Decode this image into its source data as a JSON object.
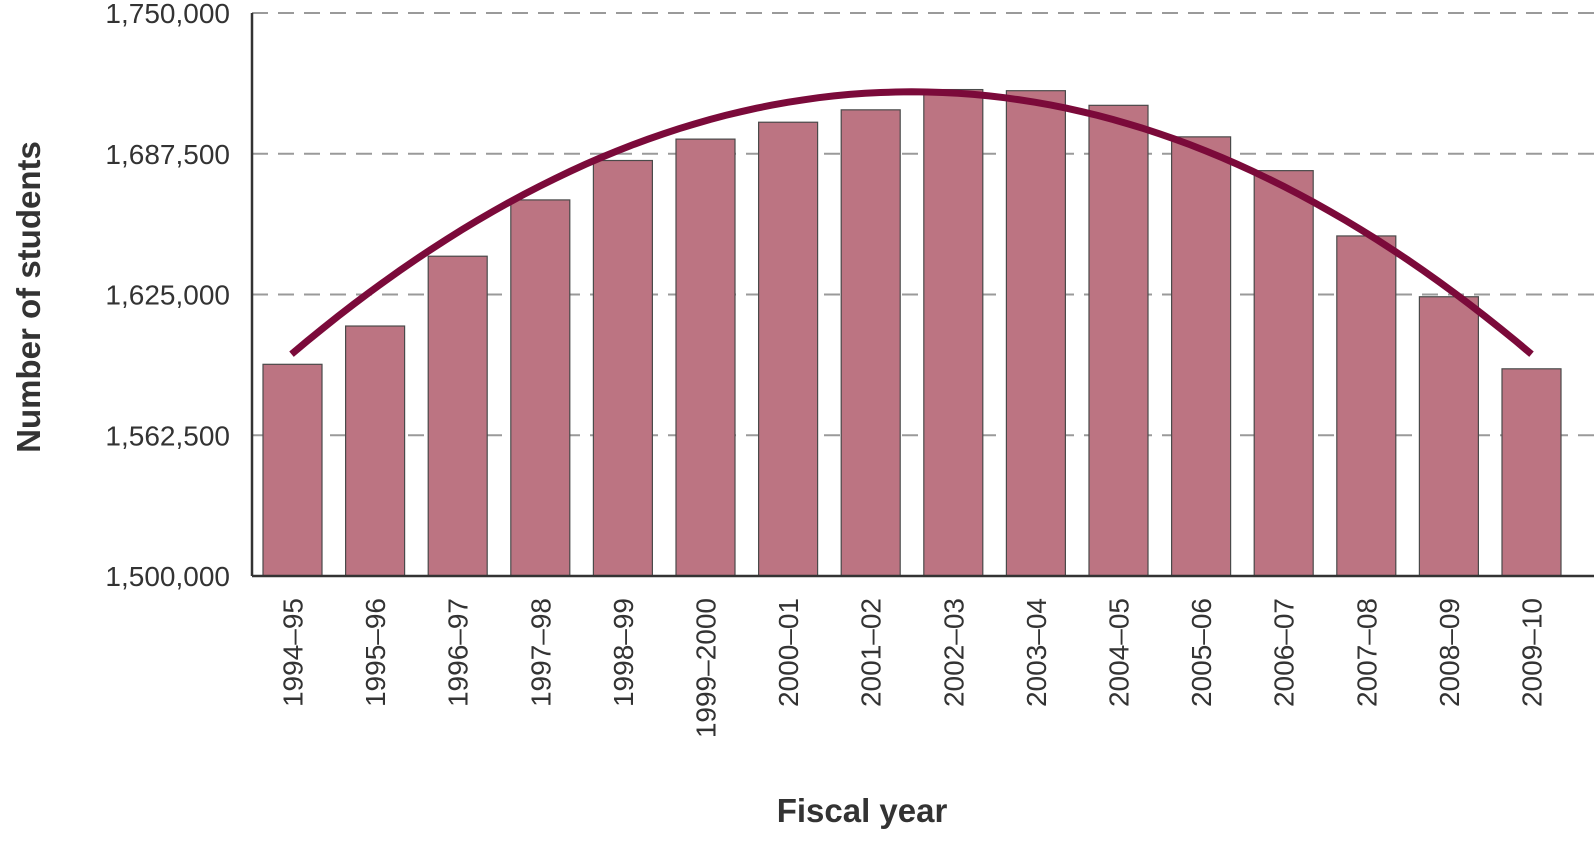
{
  "chart_data": {
    "type": "bar",
    "title": "",
    "xlabel": "Fiscal year",
    "ylabel": "Number of students",
    "categories": [
      "1994–95",
      "1995–96",
      "1996–97",
      "1997–98",
      "1998–99",
      "1999–2000",
      "2000–01",
      "2001–02",
      "2002–03",
      "2003–04",
      "2004–05",
      "2005–06",
      "2006–07",
      "2007–08",
      "2008–09",
      "2009–10"
    ],
    "values": [
      1594000,
      1611000,
      1642000,
      1667000,
      1684500,
      1694000,
      1701500,
      1707000,
      1716000,
      1715500,
      1709000,
      1695000,
      1680000,
      1651000,
      1624000,
      1592000
    ],
    "ylim": [
      1500000,
      1750000
    ],
    "yticks": [
      1500000,
      1562500,
      1625000,
      1687500,
      1750000
    ],
    "ytick_labels": [
      "1,500,000",
      "1,562,500",
      "1,625,000",
      "1,687,500",
      "1,750,000"
    ],
    "grid": "horizontal dashed",
    "trendline": {
      "type": "quadratic",
      "from_value": 1598500,
      "peak_value": 1715000,
      "to_value": 1598500
    },
    "colors": {
      "bar": "#bc7482",
      "bar_edge": "#4a4a4a",
      "trendline": "#7b0a3a",
      "grid": "#9a9a9a",
      "axis": "#333333"
    }
  }
}
